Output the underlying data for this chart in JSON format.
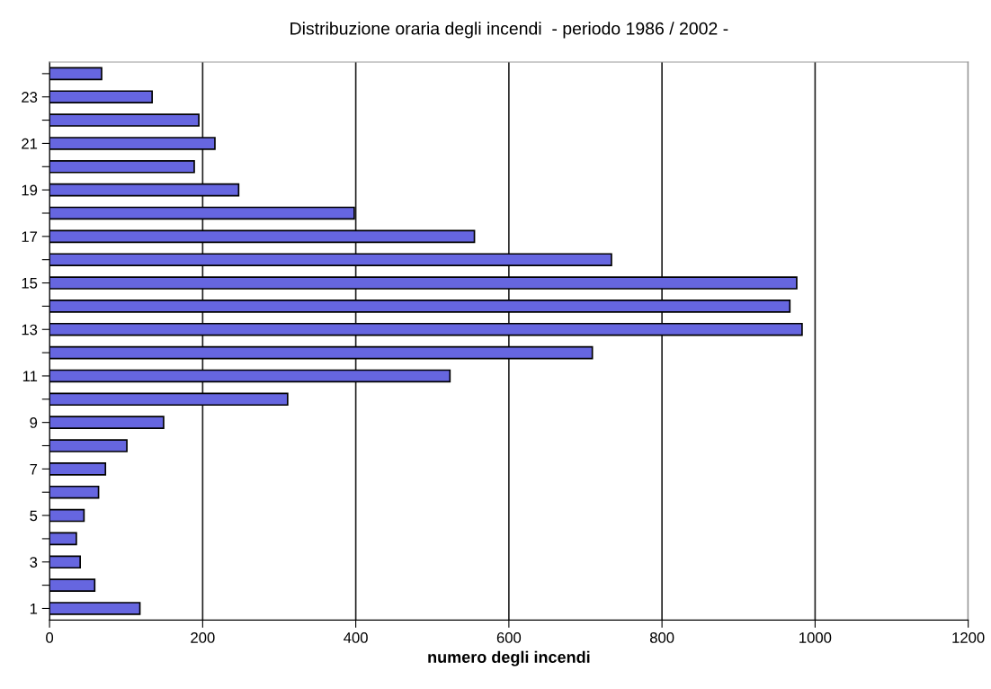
{
  "chart_data": {
    "type": "bar",
    "orientation": "horizontal",
    "title": "Distribuzione oraria degli incendi  - periodo 1986 / 2002 -",
    "xlabel": "numero degli incendi",
    "categories": [
      null,
      "23",
      null,
      "21",
      null,
      "19",
      null,
      "17",
      null,
      "15",
      null,
      "13",
      null,
      "11",
      null,
      "9",
      null,
      "7",
      null,
      "5",
      null,
      "3",
      null,
      "1"
    ],
    "values": [
      68,
      134,
      195,
      216,
      189,
      247,
      398,
      555,
      734,
      976,
      967,
      983,
      709,
      523,
      311,
      149,
      101,
      73,
      64,
      45,
      35,
      40,
      59,
      118
    ],
    "color": "#6666e0",
    "xlim": [
      0,
      1200
    ],
    "xticks": [
      0,
      200,
      400,
      600,
      800,
      1000,
      1200
    ],
    "grid": "x",
    "legend": false
  }
}
